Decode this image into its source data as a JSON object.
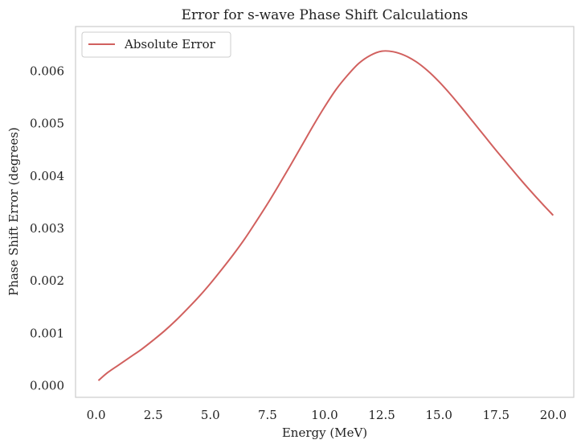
{
  "chart_data": {
    "type": "line",
    "title": "Error for s-wave Phase Shift Calculations",
    "xlabel": "Energy (MeV)",
    "ylabel": "Phase Shift Error (degrees)",
    "xlim": [
      -0.9,
      20.9
    ],
    "ylim": [
      -0.00022,
      0.00685
    ],
    "xticks": [
      0.0,
      2.5,
      5.0,
      7.5,
      10.0,
      12.5,
      15.0,
      17.5,
      20.0
    ],
    "xtick_labels": [
      "0.0",
      "2.5",
      "5.0",
      "7.5",
      "10.0",
      "12.5",
      "15.0",
      "17.5",
      "20.0"
    ],
    "yticks": [
      0.0,
      0.001,
      0.002,
      0.003,
      0.004,
      0.005,
      0.006
    ],
    "ytick_labels": [
      "0.000",
      "0.001",
      "0.002",
      "0.003",
      "0.004",
      "0.005",
      "0.006"
    ],
    "grid": false,
    "legend_position": "upper-left",
    "series": [
      {
        "name": "Absolute Error",
        "color": "#d1605e",
        "x": [
          0.1,
          0.5,
          1.0,
          1.5,
          2.0,
          2.5,
          3.0,
          3.5,
          4.0,
          4.5,
          5.0,
          5.5,
          6.0,
          6.5,
          7.0,
          7.5,
          8.0,
          8.5,
          9.0,
          9.5,
          10.0,
          10.5,
          11.0,
          11.5,
          12.0,
          12.5,
          13.0,
          13.5,
          14.0,
          14.5,
          15.0,
          15.5,
          16.0,
          16.5,
          17.0,
          17.5,
          18.0,
          18.5,
          19.0,
          19.5,
          20.0
        ],
        "y": [
          0.0001,
          0.00025,
          0.0004,
          0.00055,
          0.0007,
          0.00087,
          0.00105,
          0.00125,
          0.00147,
          0.0017,
          0.00195,
          0.00222,
          0.0025,
          0.0028,
          0.00313,
          0.00347,
          0.00383,
          0.0042,
          0.00458,
          0.00496,
          0.00532,
          0.00565,
          0.00592,
          0.00615,
          0.0063,
          0.00638,
          0.00637,
          0.0063,
          0.00618,
          0.00601,
          0.0058,
          0.00556,
          0.0053,
          0.00503,
          0.00476,
          0.00449,
          0.00423,
          0.00397,
          0.00372,
          0.00348,
          0.00325
        ]
      }
    ]
  }
}
